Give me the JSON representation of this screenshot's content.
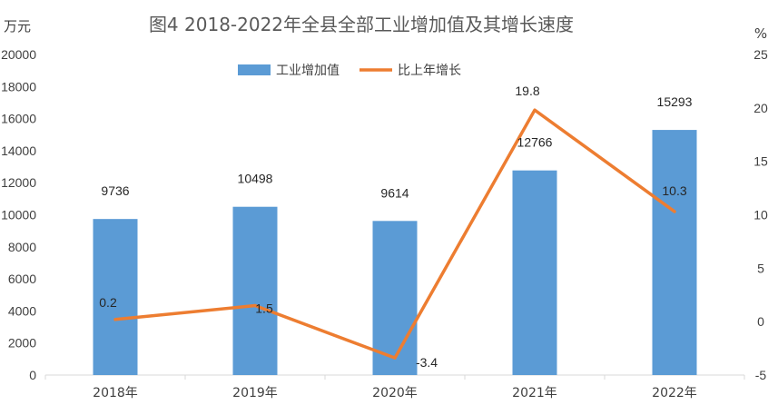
{
  "chart_data": {
    "type": "bar+line",
    "title": "图4  2018-2022年全县全部工业增加值及其增长速度",
    "left_axis_unit": "万元",
    "right_axis_unit": "%",
    "categories": [
      "2018年",
      "2019年",
      "2020年",
      "2021年",
      "2022年"
    ],
    "series": [
      {
        "name": "工业增加值",
        "type": "bar",
        "axis": "left",
        "color": "#5B9BD5",
        "values": [
          9736,
          10498,
          9614,
          12766,
          15293
        ],
        "labels": [
          "9736",
          "10498",
          "9614",
          "12766",
          "15293"
        ]
      },
      {
        "name": "比上年增长",
        "type": "line",
        "axis": "right",
        "color": "#ED7D31",
        "values": [
          0.2,
          1.5,
          -3.4,
          19.8,
          10.3
        ],
        "labels": [
          "0.2",
          "1.5",
          "-3.4",
          "19.8",
          "10.3"
        ]
      }
    ],
    "left_ylim": [
      0,
      20000
    ],
    "left_yticks": [
      "0",
      "2000",
      "4000",
      "6000",
      "8000",
      "10000",
      "12000",
      "14000",
      "16000",
      "18000",
      "20000"
    ],
    "right_ylim": [
      -5,
      25
    ],
    "right_yticks": [
      "-5",
      "0",
      "5",
      "10",
      "15",
      "20",
      "25"
    ],
    "legend_position": "top-center",
    "grid": false
  }
}
